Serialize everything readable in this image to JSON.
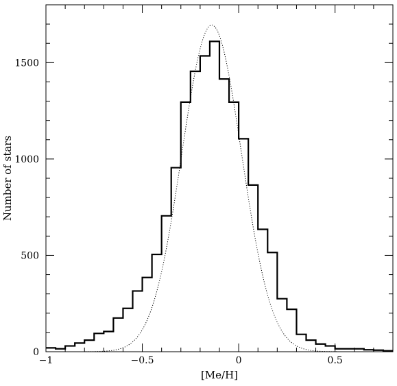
{
  "chart_data": {
    "type": "line",
    "xlabel": "[Me/H]",
    "ylabel": "Number of stars",
    "xlim": [
      -1,
      0.8
    ],
    "ylim": [
      0,
      1800
    ],
    "xticks": [
      -1,
      -0.5,
      0,
      0.5
    ],
    "xtick_labels": [
      "−1",
      "−0.5",
      "0",
      "0.5"
    ],
    "yticks": [
      0,
      500,
      1000,
      1500
    ],
    "ytick_labels": [
      "0",
      "500",
      "1000",
      "1500"
    ],
    "grid": false,
    "series": [
      {
        "style": "histogram-step-solid",
        "bin_width": 0.05,
        "x": [
          -1.0,
          -0.95,
          -0.9,
          -0.85,
          -0.8,
          -0.75,
          -0.7,
          -0.65,
          -0.6,
          -0.55,
          -0.5,
          -0.45,
          -0.4,
          -0.35,
          -0.3,
          -0.25,
          -0.2,
          -0.15,
          -0.1,
          -0.05,
          0.0,
          0.05,
          0.1,
          0.15,
          0.2,
          0.25,
          0.3,
          0.35,
          0.4,
          0.45,
          0.5,
          0.55,
          0.6,
          0.65,
          0.7,
          0.75
        ],
        "values": [
          20,
          15,
          30,
          45,
          60,
          95,
          105,
          175,
          225,
          315,
          385,
          505,
          705,
          955,
          1295,
          1455,
          1535,
          1610,
          1415,
          1295,
          1105,
          865,
          635,
          515,
          275,
          220,
          90,
          60,
          40,
          30,
          15,
          15,
          15,
          10,
          8,
          5
        ]
      },
      {
        "style": "gaussian-fit-dotted",
        "mean": -0.14,
        "sigma": 0.155,
        "peak": 1695
      }
    ]
  }
}
